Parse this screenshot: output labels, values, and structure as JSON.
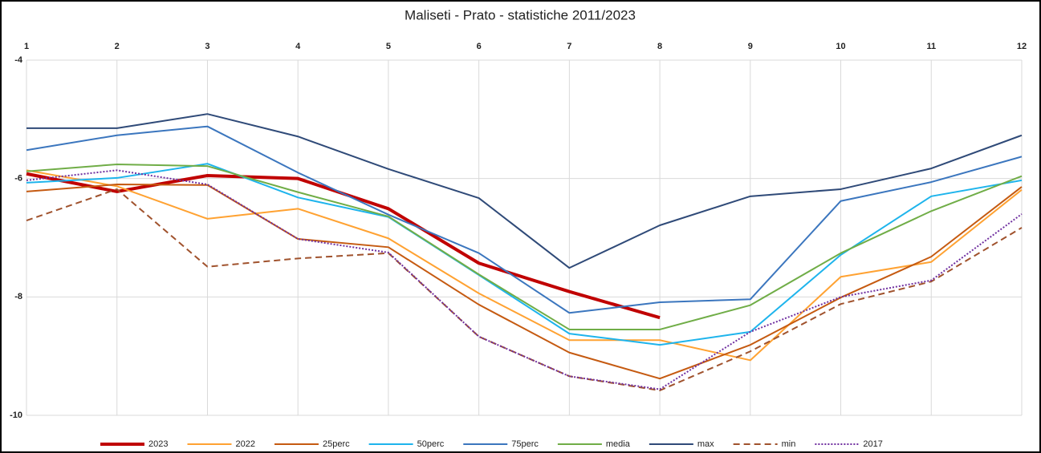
{
  "chart_data": {
    "type": "line",
    "title": "Maliseti  - Prato - statistiche 2011/2023",
    "x": [
      1,
      2,
      3,
      4,
      5,
      6,
      7,
      8,
      9,
      10,
      11,
      12
    ],
    "xlim": [
      1,
      12
    ],
    "xticks": [
      1,
      2,
      3,
      4,
      5,
      6,
      7,
      8,
      9,
      10,
      11,
      12
    ],
    "ylim": [
      -10,
      -4
    ],
    "yticks": [
      -4,
      -6,
      -8,
      -10
    ],
    "grid": true,
    "legend": "bottom",
    "series": [
      {
        "name": "2023",
        "color": "#C00000",
        "width": 4,
        "line_style": "solid",
        "values": [
          -5.92,
          -6.22,
          -5.95,
          -6.0,
          -6.51,
          -7.43,
          -7.91,
          -8.35,
          null,
          null,
          null,
          null
        ]
      },
      {
        "name": "2022",
        "color": "#FFA232",
        "width": 2,
        "line_style": "solid",
        "values": [
          -5.86,
          -6.13,
          -6.68,
          -6.51,
          -7.01,
          -7.94,
          -8.73,
          -8.73,
          -9.07,
          -7.66,
          -7.41,
          -6.19
        ]
      },
      {
        "name": "25perc",
        "color": "#C55A11",
        "width": 2,
        "line_style": "solid",
        "values": [
          -6.22,
          -6.1,
          -6.11,
          -7.02,
          -7.16,
          -8.13,
          -8.94,
          -9.38,
          -8.81,
          -8.01,
          -7.32,
          -6.14
        ]
      },
      {
        "name": "50perc",
        "color": "#1EB4EC",
        "width": 2,
        "line_style": "solid",
        "values": [
          -6.07,
          -5.99,
          -5.75,
          -6.32,
          -6.65,
          -7.63,
          -8.62,
          -8.81,
          -8.59,
          -7.29,
          -6.3,
          -6.03
        ]
      },
      {
        "name": "75perc",
        "color": "#3B76BE",
        "width": 2,
        "line_style": "solid",
        "values": [
          -5.52,
          -5.27,
          -5.12,
          -5.9,
          -6.61,
          -7.26,
          -8.27,
          -8.09,
          -8.04,
          -6.38,
          -6.06,
          -5.63
        ]
      },
      {
        "name": "media",
        "color": "#70AD47",
        "width": 2,
        "line_style": "solid",
        "values": [
          -5.88,
          -5.76,
          -5.79,
          -6.23,
          -6.64,
          -7.62,
          -8.55,
          -8.55,
          -8.14,
          -7.26,
          -6.55,
          -5.96
        ]
      },
      {
        "name": "max",
        "color": "#2F4A78",
        "width": 2,
        "line_style": "solid",
        "values": [
          -5.15,
          -5.15,
          -4.91,
          -5.29,
          -5.84,
          -6.33,
          -7.51,
          -6.79,
          -6.3,
          -6.18,
          -5.83,
          -5.27
        ]
      },
      {
        "name": "min",
        "color": "#A0522D",
        "width": 2,
        "line_style": "dashed",
        "values": [
          -6.71,
          -6.18,
          -7.49,
          -7.35,
          -7.26,
          -8.67,
          -9.34,
          -9.58,
          -8.92,
          -8.12,
          -7.74,
          -6.83
        ]
      },
      {
        "name": "2017",
        "color": "#7030A0",
        "width": 2,
        "line_style": "dotted",
        "values": [
          -6.03,
          -5.86,
          -6.1,
          -7.02,
          -7.25,
          -8.67,
          -9.34,
          -9.56,
          -8.59,
          -8.0,
          -7.72,
          -6.6
        ]
      }
    ]
  }
}
